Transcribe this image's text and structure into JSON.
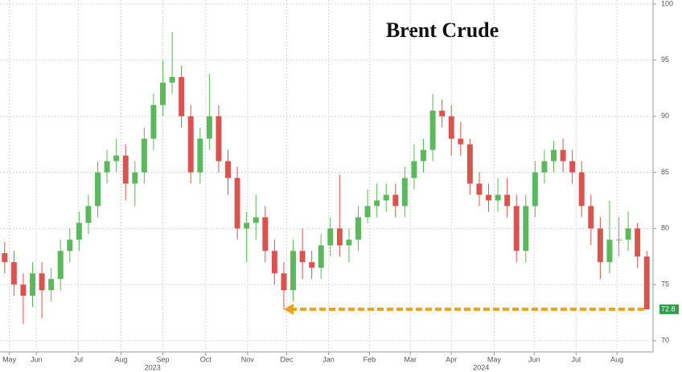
{
  "chart_data": {
    "type": "candlestick",
    "title": "Brent Crude",
    "up_color": "#5cb85c",
    "down_color": "#d9534f",
    "xlim": [
      -0.5,
      69.5
    ],
    "xticks": [
      {
        "value": 0.5,
        "label": "May"
      },
      {
        "value": 3.4,
        "label": "Jun"
      },
      {
        "value": 7.9,
        "label": "Jul"
      },
      {
        "value": 12.5,
        "label": "Aug"
      },
      {
        "value": 17,
        "label": "Sep"
      },
      {
        "value": 21.6,
        "label": "Oct"
      },
      {
        "value": 26.1,
        "label": "Nov"
      },
      {
        "value": 30.3,
        "label": "Dec"
      },
      {
        "value": 34.8,
        "label": "Jan"
      },
      {
        "value": 39.2,
        "label": "Feb"
      },
      {
        "value": 43.6,
        "label": "Mar"
      },
      {
        "value": 48,
        "label": "Apr"
      },
      {
        "value": 52.6,
        "label": "May"
      },
      {
        "value": 56.9,
        "label": "Jun"
      },
      {
        "value": 61.4,
        "label": "Jul"
      },
      {
        "value": 65.8,
        "label": "Aug"
      }
    ],
    "year_labels": [
      {
        "value": 15.9,
        "label": "2023"
      },
      {
        "value": 51.2,
        "label": "2024"
      }
    ],
    "ylim": [
      69,
      100.36
    ],
    "yticks": [
      70,
      75,
      80,
      85,
      90,
      95,
      100
    ],
    "grid": true,
    "open": [
      77.8,
      77,
      75,
      74,
      76,
      74.5,
      75.5,
      78,
      79,
      80.5,
      82,
      85,
      86,
      86.5,
      84,
      85,
      88,
      91,
      93,
      93.5,
      90,
      85,
      88,
      90,
      86,
      84.5,
      80,
      80.5,
      81,
      78,
      76,
      74.5,
      78,
      77,
      76.5,
      78.5,
      80,
      78.5,
      79,
      81,
      82,
      82.5,
      83,
      82,
      84.5,
      86,
      87,
      90.5,
      90,
      88,
      87.5,
      84,
      83,
      82.5,
      83,
      82,
      78,
      82,
      85,
      86,
      87,
      86,
      85,
      82,
      80,
      77,
      79,
      79,
      80,
      77.5
    ],
    "high": [
      78.8,
      78,
      76,
      77,
      77,
      76.5,
      79,
      80,
      81.5,
      83,
      86,
      87,
      88,
      87.5,
      86,
      89,
      92,
      95,
      97.5,
      94.5,
      91,
      89,
      93.8,
      91,
      87,
      85.5,
      81.5,
      83,
      82,
      79,
      77,
      79,
      80,
      78,
      79.5,
      81,
      84.8,
      80,
      82,
      83.5,
      84,
      84,
      84,
      85.5,
      87.5,
      88,
      92,
      91.5,
      91,
      89.5,
      88,
      85,
      84,
      84.5,
      84.5,
      83,
      83,
      86,
      87,
      87.8,
      88,
      87,
      86,
      83,
      81,
      82.5,
      81,
      81.5,
      80.5,
      78
    ],
    "low": [
      76,
      74,
      71.5,
      73,
      72,
      73.5,
      74.5,
      77,
      78,
      79.5,
      81,
      84,
      85,
      82.5,
      82,
      84,
      87,
      90,
      92,
      89,
      84,
      84,
      87,
      85,
      83,
      79,
      77,
      79,
      77,
      75,
      72.8,
      73.5,
      75.5,
      75.5,
      75.5,
      77.5,
      77.5,
      77,
      78,
      80.5,
      81,
      81.5,
      81,
      81,
      83.5,
      85,
      86,
      89,
      86.5,
      86.5,
      83,
      82,
      81.5,
      81.5,
      81,
      77,
      77,
      81,
      84,
      85,
      85,
      84,
      81,
      78.5,
      75.5,
      76,
      77.5,
      78,
      76.5,
      72.8
    ],
    "close": [
      77,
      75,
      74,
      76,
      74.5,
      75.5,
      78,
      79,
      80.5,
      82,
      85,
      86,
      86.5,
      84,
      85,
      88,
      91,
      93,
      93.5,
      90,
      85,
      88,
      90,
      86,
      84.5,
      80,
      80.5,
      81,
      78,
      76,
      74.5,
      78,
      77,
      76.5,
      78.5,
      80,
      78.5,
      79,
      81,
      82,
      82.5,
      83,
      82,
      84.5,
      86,
      87,
      90.5,
      90,
      88,
      87.5,
      84,
      83,
      82.5,
      83,
      82,
      78,
      82,
      85,
      86,
      87,
      86,
      85,
      82,
      80,
      77,
      79,
      79,
      80,
      77.5,
      72.8
    ],
    "arrow": {
      "y": 72.8,
      "x": [
        30,
        69
      ],
      "color": "#f0a020"
    },
    "last_price": {
      "value": 72.8,
      "label": "72.8",
      "color": "#2e9e4a"
    }
  }
}
